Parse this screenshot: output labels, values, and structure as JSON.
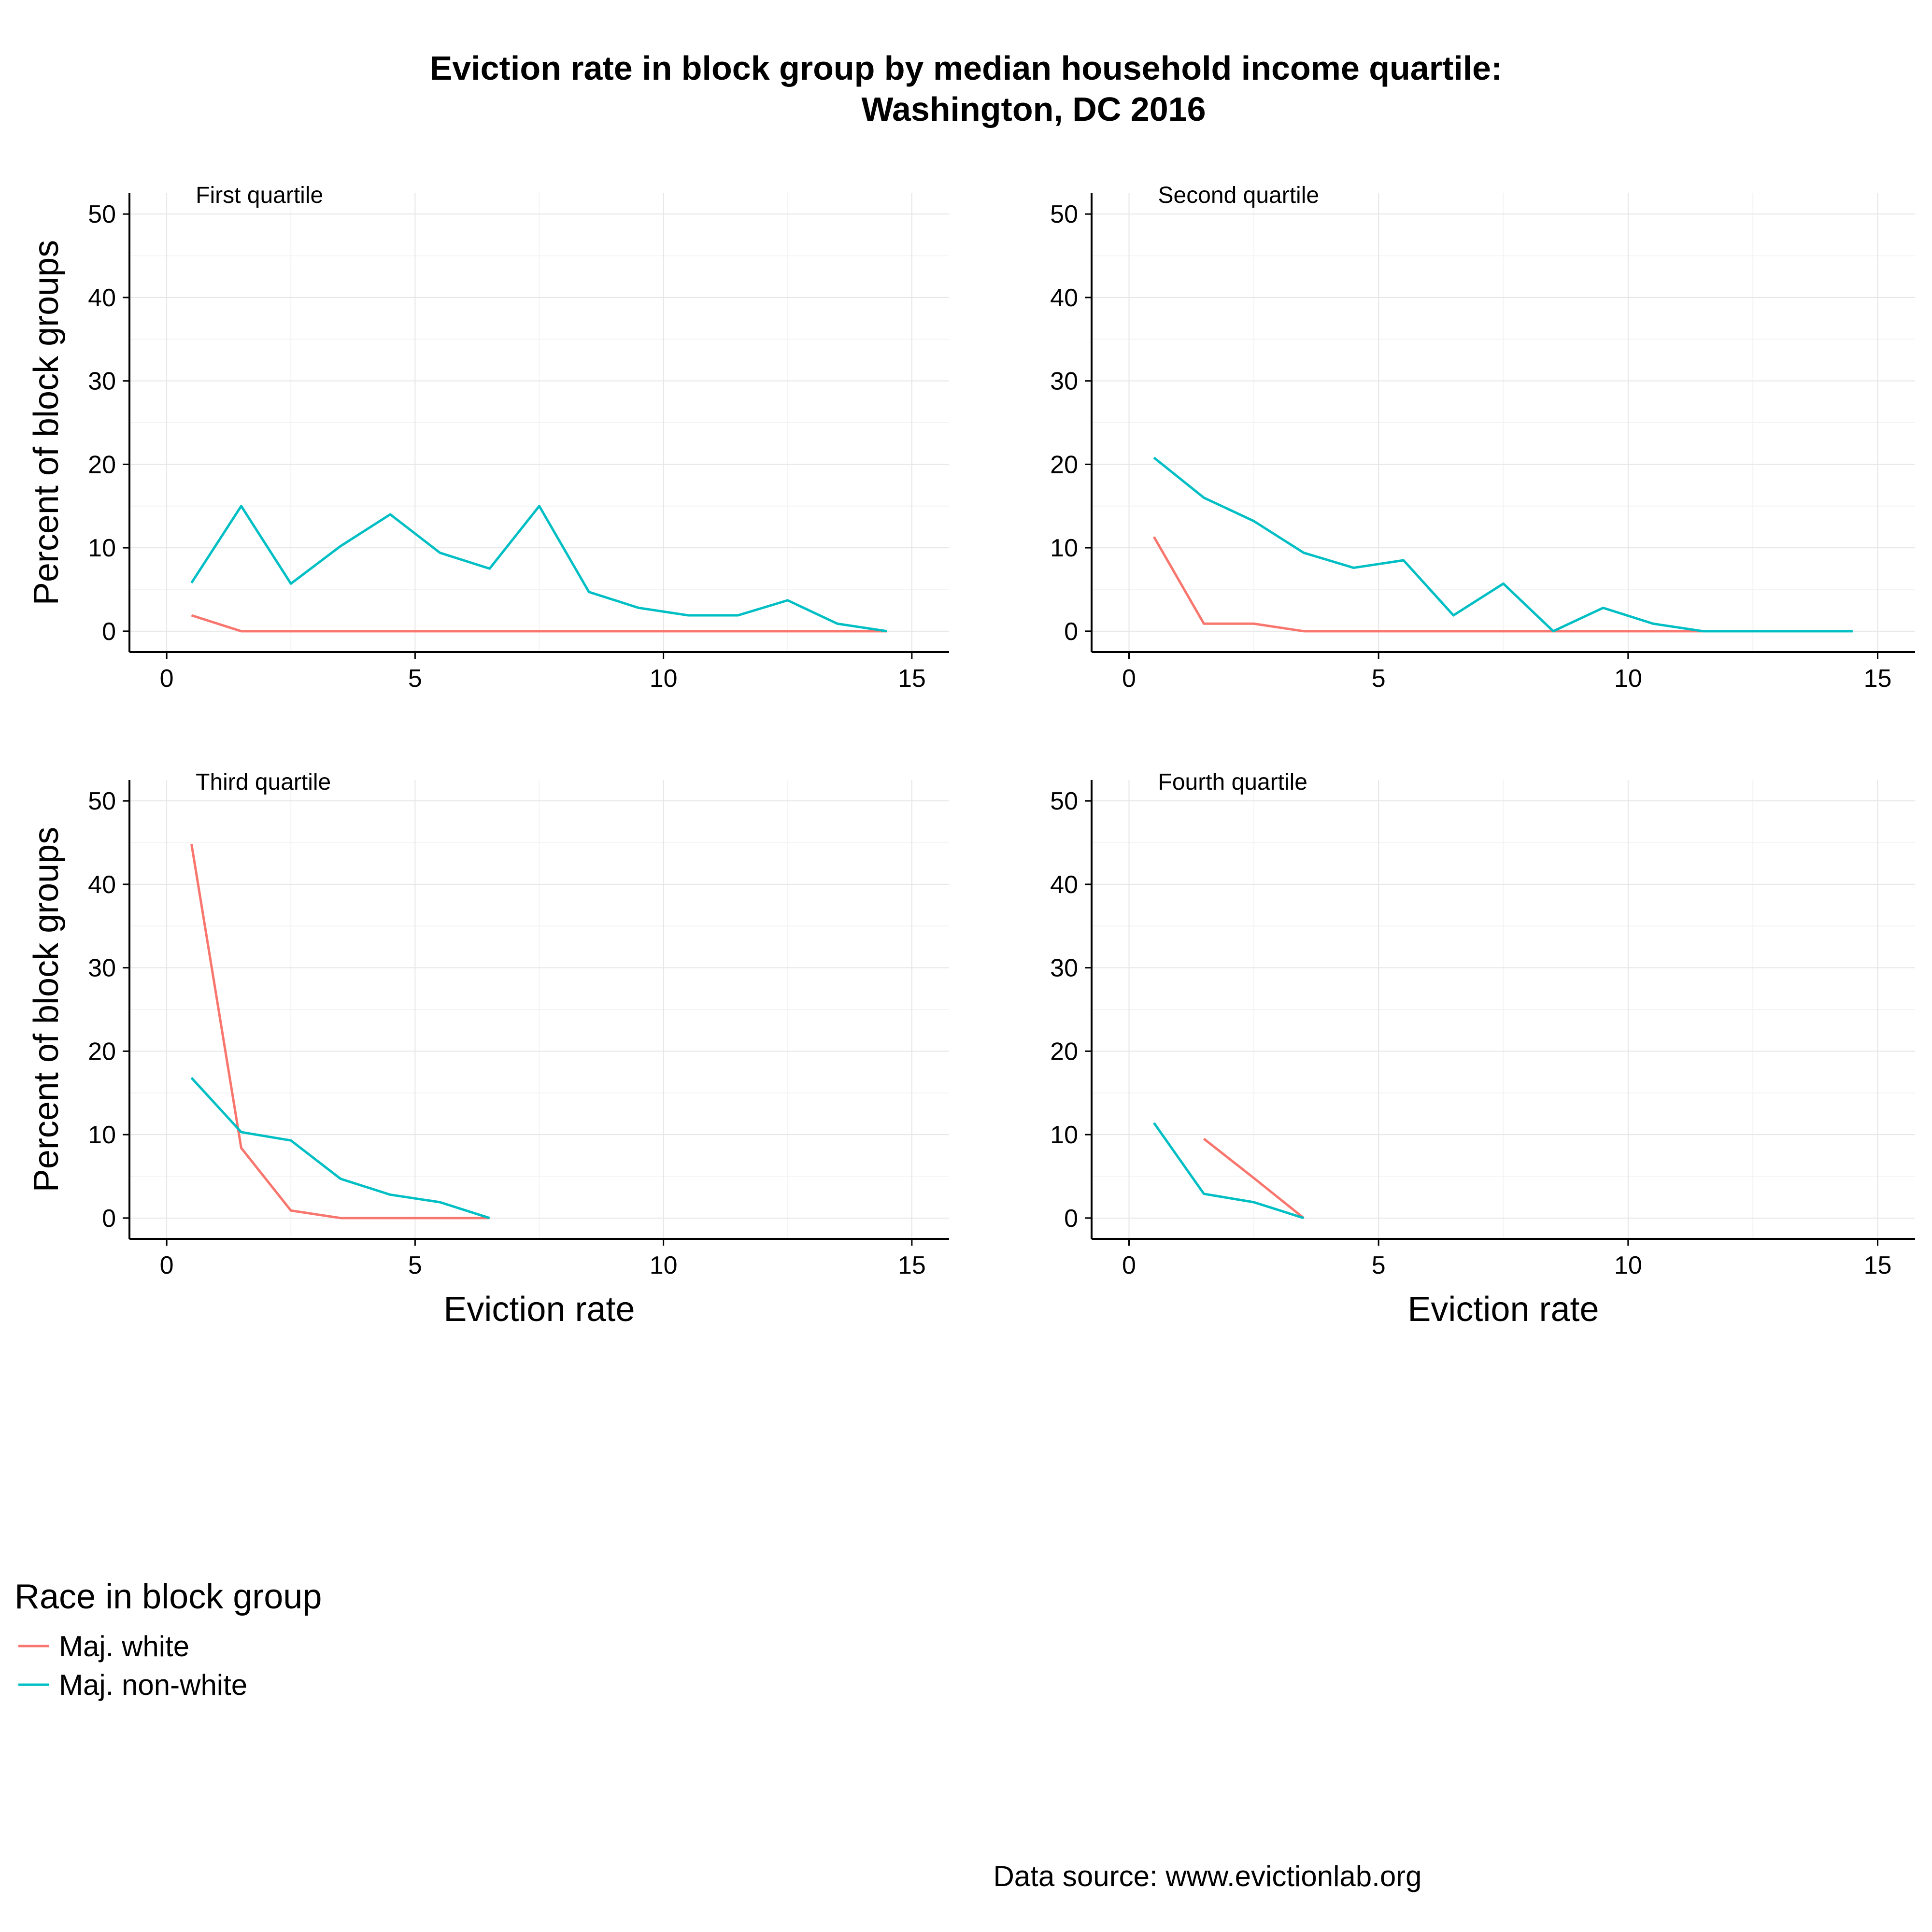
{
  "chart_data": {
    "type": "line",
    "title": "Eviction rate in block group by median household income quartile:",
    "subtitle": "Washington, DC 2016",
    "xlabel": "Eviction rate",
    "ylabel": "Percent of block groups",
    "xlim": [
      -0.75,
      15.75
    ],
    "ylim": [
      -2.5,
      52.5
    ],
    "xticks": [
      0,
      5,
      10,
      15
    ],
    "yticks": [
      0,
      10,
      20,
      30,
      40,
      50
    ],
    "grid": true,
    "legend": {
      "title": "Race in block group",
      "position": "bottom-left",
      "entries": [
        {
          "name": "Maj. white",
          "color": "#F8766D"
        },
        {
          "name": "Maj. non-white",
          "color": "#00BFC4"
        }
      ]
    },
    "facets": [
      {
        "label": "First quartile",
        "series": [
          {
            "name": "Maj. white",
            "color": "#F8766D",
            "x": [
              0.5,
              1.5,
              2.5,
              3.5,
              4.5,
              5.5,
              6.5,
              7.5,
              8.5,
              9.5,
              10.5,
              11.5,
              12.5,
              13.5,
              14.5
            ],
            "y": [
              1.9,
              0,
              0,
              0,
              0,
              0,
              0,
              0,
              0,
              0,
              0,
              0,
              0,
              0,
              0
            ]
          },
          {
            "name": "Maj. non-white",
            "color": "#00BFC4",
            "x": [
              0.5,
              1.5,
              2.5,
              3.5,
              4.5,
              5.5,
              6.5,
              7.5,
              8.5,
              9.5,
              10.5,
              11.5,
              12.5,
              13.5,
              14.5
            ],
            "y": [
              5.8,
              15.0,
              5.7,
              10.2,
              14.0,
              9.4,
              7.5,
              15.0,
              4.7,
              2.8,
              1.9,
              1.9,
              3.7,
              0.9,
              0
            ]
          }
        ]
      },
      {
        "label": "Second quartile",
        "series": [
          {
            "name": "Maj. white",
            "color": "#F8766D",
            "x": [
              0.5,
              1.5,
              2.5,
              3.5,
              4.5,
              5.5,
              6.5,
              7.5,
              8.5,
              9.5,
              10.5,
              11.5
            ],
            "y": [
              11.3,
              0.9,
              0.9,
              0,
              0,
              0,
              0,
              0,
              0,
              0,
              0,
              0
            ]
          },
          {
            "name": "Maj. non-white",
            "color": "#00BFC4",
            "x": [
              0.5,
              1.5,
              2.5,
              3.5,
              4.5,
              5.5,
              6.5,
              7.5,
              8.5,
              9.5,
              10.5,
              11.5,
              12.5,
              13.5,
              14.5
            ],
            "y": [
              20.8,
              16.0,
              13.2,
              9.4,
              7.6,
              8.5,
              1.9,
              5.7,
              0,
              2.8,
              0.9,
              0,
              0,
              0,
              0
            ]
          }
        ]
      },
      {
        "label": "Third quartile",
        "series": [
          {
            "name": "Maj. white",
            "color": "#F8766D",
            "x": [
              0.5,
              1.5,
              2.5,
              3.5,
              4.5,
              5.5,
              6.5
            ],
            "y": [
              44.8,
              8.4,
              0.9,
              0,
              0,
              0,
              0
            ]
          },
          {
            "name": "Maj. non-white",
            "color": "#00BFC4",
            "x": [
              0.5,
              1.5,
              2.5,
              3.5,
              4.5,
              5.5,
              6.5
            ],
            "y": [
              16.8,
              10.3,
              9.3,
              4.7,
              2.8,
              1.9,
              0
            ]
          }
        ]
      },
      {
        "label": "Fourth quartile",
        "series": [
          {
            "name": "Maj. white",
            "color": "#F8766D",
            "x": [
              1.5,
              2.5,
              3.5
            ],
            "y": [
              9.5,
              4.8,
              0
            ]
          },
          {
            "name": "Maj. non-white",
            "color": "#00BFC4",
            "x": [
              0.5,
              1.5,
              2.5,
              3.5
            ],
            "y": [
              11.4,
              2.9,
              1.9,
              0
            ]
          }
        ]
      }
    ]
  },
  "caption": "Data source: www.evictionlab.org"
}
